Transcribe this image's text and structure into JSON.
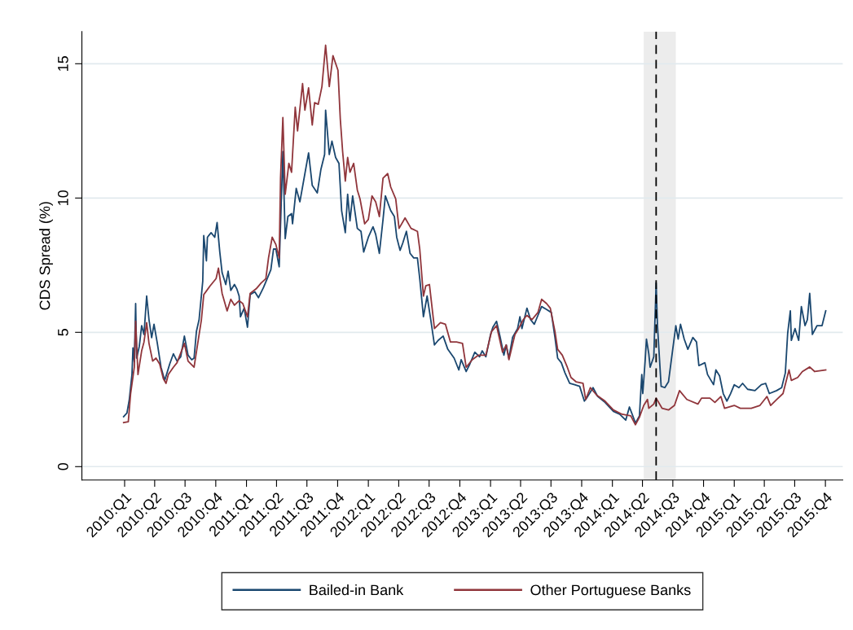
{
  "chart_data": {
    "type": "line",
    "ylabel": "CDS Spread (%)",
    "xlim": [
      "2009-08-26",
      "2015-11-22"
    ],
    "ylim": [
      -0.5,
      16.2
    ],
    "yticks": [
      0,
      5,
      10,
      15
    ],
    "xticks": [
      {
        "value": "2010-01-01",
        "label": "2010:Q1"
      },
      {
        "value": "2010-04-01",
        "label": "2010:Q2"
      },
      {
        "value": "2010-07-01",
        "label": "2010:Q3"
      },
      {
        "value": "2010-10-01",
        "label": "2010:Q4"
      },
      {
        "value": "2011-01-01",
        "label": "2011:Q1"
      },
      {
        "value": "2011-04-01",
        "label": "2011:Q2"
      },
      {
        "value": "2011-07-01",
        "label": "2011:Q3"
      },
      {
        "value": "2011-10-01",
        "label": "2011:Q4"
      },
      {
        "value": "2012-01-01",
        "label": "2012:Q1"
      },
      {
        "value": "2012-04-01",
        "label": "2012:Q2"
      },
      {
        "value": "2012-07-01",
        "label": "2012:Q3"
      },
      {
        "value": "2012-10-01",
        "label": "2012:Q4"
      },
      {
        "value": "2013-01-01",
        "label": "2013:Q1"
      },
      {
        "value": "2013-04-01",
        "label": "2013:Q2"
      },
      {
        "value": "2013-07-01",
        "label": "2013:Q3"
      },
      {
        "value": "2013-10-01",
        "label": "2013:Q4"
      },
      {
        "value": "2014-01-01",
        "label": "2014:Q1"
      },
      {
        "value": "2014-04-01",
        "label": "2014:Q2"
      },
      {
        "value": "2014-07-01",
        "label": "2014:Q3"
      },
      {
        "value": "2014-10-01",
        "label": "2014:Q4"
      },
      {
        "value": "2015-01-01",
        "label": "2015:Q1"
      },
      {
        "value": "2015-04-01",
        "label": "2015:Q2"
      },
      {
        "value": "2015-07-01",
        "label": "2015:Q3"
      },
      {
        "value": "2015-10-01",
        "label": "2015:Q4"
      }
    ],
    "grid": "y",
    "legend": "bottom",
    "line_style": "solid",
    "ref_lines": [
      {
        "axis": "x",
        "value": "2014-05-12",
        "color": "#000000",
        "line_style": "dashed"
      }
    ],
    "bands": [
      {
        "axis": "x",
        "from": "2014-04-05",
        "to": "2014-07-10",
        "color": "#ececec"
      }
    ],
    "series": [
      {
        "name": "Bailed-in Bank",
        "color": "#1a476f",
        "x": [
          "2009-12-29",
          "2010-01-08",
          "2010-01-15",
          "2010-01-23",
          "2010-01-26",
          "2010-01-30",
          "2010-02-03",
          "2010-02-06",
          "2010-02-14",
          "2010-02-21",
          "2010-02-28",
          "2010-03-08",
          "2010-03-15",
          "2010-03-23",
          "2010-03-30",
          "2010-04-09",
          "2010-04-20",
          "2010-05-01",
          "2010-05-08",
          "2010-05-16",
          "2010-05-27",
          "2010-06-07",
          "2010-06-18",
          "2010-06-29",
          "2010-07-10",
          "2010-07-21",
          "2010-07-28",
          "2010-08-04",
          "2010-08-12",
          "2010-08-23",
          "2010-08-26",
          "2010-09-03",
          "2010-09-06",
          "2010-09-17",
          "2010-09-28",
          "2010-10-05",
          "2010-10-13",
          "2010-10-20",
          "2010-10-31",
          "2010-11-07",
          "2010-11-15",
          "2010-11-26",
          "2010-12-03",
          "2010-12-10",
          "2010-12-14",
          "2010-12-25",
          "2011-01-04",
          "2011-01-12",
          "2011-01-26",
          "2011-02-06",
          "2011-02-21",
          "2011-03-04",
          "2011-03-15",
          "2011-03-23",
          "2011-03-30",
          "2011-04-09",
          "2011-04-20",
          "2011-04-27",
          "2011-05-05",
          "2011-05-16",
          "2011-05-19",
          "2011-05-30",
          "2011-06-10",
          "2011-06-25",
          "2011-07-06",
          "2011-07-17",
          "2011-08-01",
          "2011-08-12",
          "2011-08-23",
          "2011-08-26",
          "2011-09-06",
          "2011-09-14",
          "2011-09-25",
          "2011-10-05",
          "2011-10-13",
          "2011-10-24",
          "2011-10-31",
          "2011-11-07",
          "2011-11-15",
          "2011-11-29",
          "2011-12-10",
          "2011-12-18",
          "2012-01-01",
          "2012-01-15",
          "2012-01-23",
          "2012-02-03",
          "2012-02-14",
          "2012-02-21",
          "2012-03-08",
          "2012-03-19",
          "2012-03-26",
          "2012-04-05",
          "2012-04-13",
          "2012-04-24",
          "2012-05-05",
          "2012-05-16",
          "2012-05-27",
          "2012-06-03",
          "2012-06-14",
          "2012-06-25",
          "2012-07-06",
          "2012-07-17",
          "2012-07-28",
          "2012-08-12",
          "2012-08-26",
          "2012-09-14",
          "2012-09-28",
          "2012-10-05",
          "2012-10-20",
          "2012-10-31",
          "2012-11-15",
          "2012-11-29",
          "2012-12-07",
          "2012-12-18",
          "2013-01-01",
          "2013-01-08",
          "2013-01-19",
          "2013-01-30",
          "2013-02-10",
          "2013-02-17",
          "2013-02-25",
          "2013-03-08",
          "2013-03-23",
          "2013-03-30",
          "2013-04-05",
          "2013-04-20",
          "2013-05-01",
          "2013-05-12",
          "2013-05-23",
          "2013-06-03",
          "2013-06-18",
          "2013-07-02",
          "2013-07-13",
          "2013-07-21",
          "2013-08-01",
          "2013-08-12",
          "2013-08-26",
          "2013-09-10",
          "2013-09-25",
          "2013-10-09",
          "2013-10-16",
          "2013-11-04",
          "2013-11-18",
          "2013-12-10",
          "2014-01-04",
          "2014-01-23",
          "2014-02-10",
          "2014-02-21",
          "2014-03-08",
          "2014-03-11",
          "2014-03-23",
          "2014-03-30",
          "2014-04-02",
          "2014-04-09",
          "2014-04-13",
          "2014-04-20",
          "2014-04-24",
          "2014-05-05",
          "2014-05-12",
          "2014-05-16",
          "2014-05-27",
          "2014-06-07",
          "2014-06-18",
          "2014-06-25",
          "2014-07-10",
          "2014-07-17",
          "2014-07-24",
          "2014-08-04",
          "2014-08-15",
          "2014-08-30",
          "2014-09-10",
          "2014-09-17",
          "2014-10-05",
          "2014-10-13",
          "2014-10-31",
          "2014-11-07",
          "2014-11-18",
          "2014-11-29",
          "2014-12-10",
          "2014-12-21",
          "2015-01-01",
          "2015-01-15",
          "2015-01-26",
          "2015-02-10",
          "2015-03-04",
          "2015-03-23",
          "2015-04-05",
          "2015-04-16",
          "2015-05-08",
          "2015-05-23",
          "2015-06-03",
          "2015-06-10",
          "2015-06-18",
          "2015-06-21",
          "2015-07-02",
          "2015-07-13",
          "2015-07-21",
          "2015-08-01",
          "2015-08-08",
          "2015-08-15",
          "2015-08-23",
          "2015-09-06",
          "2015-09-21",
          "2015-10-02"
        ],
        "values": [
          1.86,
          2.0,
          2.5,
          3.43,
          4.42,
          3.9,
          6.07,
          4.04,
          4.48,
          5.25,
          4.92,
          6.35,
          5.47,
          4.8,
          5.3,
          4.59,
          3.7,
          3.21,
          3.49,
          3.82,
          4.2,
          3.93,
          4.09,
          4.86,
          4.15,
          3.98,
          4.04,
          5.03,
          5.47,
          6.9,
          8.6,
          7.66,
          8.54,
          8.71,
          8.54,
          9.09,
          8.0,
          7.22,
          6.78,
          7.28,
          6.56,
          6.78,
          6.62,
          6.35,
          5.58,
          5.9,
          5.19,
          6.4,
          6.51,
          6.29,
          6.67,
          7.0,
          7.33,
          8.1,
          8.1,
          7.44,
          11.73,
          8.49,
          9.31,
          9.42,
          9.04,
          10.36,
          9.86,
          10.91,
          11.68,
          10.47,
          10.19,
          11.07,
          11.62,
          13.27,
          11.62,
          12.12,
          11.51,
          11.29,
          9.53,
          8.71,
          10.14,
          9.15,
          10.08,
          8.87,
          8.76,
          7.99,
          8.54,
          8.93,
          8.65,
          7.94,
          9.2,
          10.08,
          9.53,
          9.31,
          8.54,
          8.05,
          8.32,
          8.76,
          7.94,
          7.77,
          7.77,
          7.0,
          5.58,
          6.35,
          5.47,
          4.53,
          4.7,
          4.86,
          4.37,
          4.04,
          3.6,
          3.98,
          3.54,
          3.82,
          4.26,
          4.09,
          4.31,
          4.09,
          4.92,
          5.19,
          5.41,
          4.81,
          4.15,
          4.53,
          4.04,
          4.81,
          5.14,
          5.58,
          5.14,
          5.9,
          5.47,
          5.3,
          5.63,
          5.96,
          5.85,
          5.74,
          4.81,
          4.04,
          3.87,
          3.49,
          3.1,
          3.05,
          2.99,
          2.44,
          2.55,
          2.94,
          2.61,
          2.39,
          2.06,
          1.95,
          1.73,
          2.22,
          1.73,
          1.62,
          1.89,
          3.43,
          2.72,
          3.93,
          4.75,
          4.2,
          3.7,
          4.09,
          6.84,
          5.25,
          2.99,
          2.94,
          3.16,
          3.82,
          5.25,
          4.75,
          5.3,
          4.75,
          4.37,
          4.81,
          4.64,
          3.76,
          3.87,
          3.43,
          3.05,
          3.6,
          3.38,
          2.72,
          2.44,
          2.72,
          3.05,
          2.94,
          3.1,
          2.88,
          2.83,
          3.05,
          3.1,
          2.72,
          2.83,
          2.94,
          3.49,
          4.97,
          5.8,
          4.7,
          5.14,
          4.7,
          5.96,
          5.25,
          5.47,
          6.45,
          4.92,
          5.25,
          5.25,
          5.8
        ]
      },
      {
        "name": "Other Portuguese Banks",
        "color": "#90353b",
        "x": [
          "2009-12-29",
          "2010-01-12",
          "2010-01-19",
          "2010-01-30",
          "2010-02-03",
          "2010-02-10",
          "2010-02-21",
          "2010-02-28",
          "2010-03-08",
          "2010-03-15",
          "2010-03-26",
          "2010-04-05",
          "2010-04-16",
          "2010-04-27",
          "2010-05-05",
          "2010-05-12",
          "2010-05-27",
          "2010-06-07",
          "2010-06-29",
          "2010-07-10",
          "2010-07-28",
          "2010-08-08",
          "2010-08-19",
          "2010-08-26",
          "2010-09-14",
          "2010-10-02",
          "2010-10-09",
          "2010-10-20",
          "2010-11-04",
          "2010-11-15",
          "2010-11-26",
          "2010-12-10",
          "2010-12-21",
          "2011-01-04",
          "2011-01-12",
          "2011-01-30",
          "2011-02-14",
          "2011-02-28",
          "2011-03-08",
          "2011-03-19",
          "2011-03-30",
          "2011-04-09",
          "2011-04-13",
          "2011-04-20",
          "2011-04-27",
          "2011-05-08",
          "2011-05-16",
          "2011-05-27",
          "2011-06-03",
          "2011-06-18",
          "2011-06-25",
          "2011-07-06",
          "2011-07-17",
          "2011-07-24",
          "2011-08-04",
          "2011-08-15",
          "2011-08-26",
          "2011-09-06",
          "2011-09-17",
          "2011-10-02",
          "2011-10-09",
          "2011-10-16",
          "2011-10-24",
          "2011-10-31",
          "2011-11-07",
          "2011-11-18",
          "2011-11-29",
          "2011-12-07",
          "2011-12-21",
          "2012-01-01",
          "2012-01-12",
          "2012-01-23",
          "2012-02-03",
          "2012-02-14",
          "2012-02-28",
          "2012-03-08",
          "2012-03-23",
          "2012-04-02",
          "2012-04-20",
          "2012-05-08",
          "2012-05-27",
          "2012-06-03",
          "2012-06-14",
          "2012-06-21",
          "2012-07-02",
          "2012-07-17",
          "2012-08-04",
          "2012-08-19",
          "2012-09-03",
          "2012-09-21",
          "2012-10-09",
          "2012-10-20",
          "2012-11-07",
          "2012-11-26",
          "2012-12-18",
          "2013-01-04",
          "2013-01-19",
          "2013-02-06",
          "2013-02-17",
          "2013-02-25",
          "2013-03-15",
          "2013-03-26",
          "2013-04-09",
          "2013-04-20",
          "2013-05-05",
          "2013-05-23",
          "2013-06-03",
          "2013-06-18",
          "2013-06-29",
          "2013-07-13",
          "2013-07-21",
          "2013-08-04",
          "2013-08-19",
          "2013-08-30",
          "2013-09-14",
          "2013-10-05",
          "2013-10-13",
          "2013-10-27",
          "2013-11-15",
          "2013-12-10",
          "2014-01-04",
          "2014-01-30",
          "2014-02-25",
          "2014-03-11",
          "2014-03-23",
          "2014-04-05",
          "2014-04-16",
          "2014-04-20",
          "2014-05-05",
          "2014-05-12",
          "2014-05-30",
          "2014-06-18",
          "2014-07-06",
          "2014-07-21",
          "2014-08-12",
          "2014-09-14",
          "2014-09-25",
          "2014-10-20",
          "2014-11-04",
          "2014-11-22",
          "2014-12-03",
          "2015-01-01",
          "2015-01-19",
          "2015-02-21",
          "2015-03-19",
          "2015-04-02",
          "2015-04-09",
          "2015-04-20",
          "2015-05-08",
          "2015-05-27",
          "2015-06-14",
          "2015-06-21",
          "2015-07-10",
          "2015-07-24",
          "2015-08-15",
          "2015-08-30",
          "2015-10-02"
        ],
        "values": [
          1.64,
          1.67,
          2.72,
          3.7,
          5.41,
          3.43,
          4.31,
          4.64,
          5.36,
          4.59,
          3.93,
          4.04,
          3.82,
          3.27,
          3.1,
          3.43,
          3.7,
          3.87,
          4.59,
          3.93,
          3.7,
          4.59,
          5.47,
          6.4,
          6.73,
          7.0,
          7.39,
          6.45,
          5.8,
          6.23,
          6.01,
          6.18,
          6.07,
          5.58,
          6.45,
          6.62,
          6.84,
          7.0,
          7.77,
          8.54,
          8.27,
          7.77,
          10.74,
          13.0,
          10.14,
          11.29,
          10.96,
          13.38,
          12.5,
          14.26,
          13.27,
          14.1,
          12.72,
          13.55,
          13.49,
          14.15,
          15.69,
          14.15,
          15.3,
          14.76,
          12.94,
          11.73,
          10.63,
          11.51,
          10.96,
          11.29,
          10.3,
          9.97,
          9.04,
          9.2,
          10.08,
          9.86,
          9.31,
          10.74,
          10.91,
          10.41,
          9.97,
          8.87,
          9.26,
          8.87,
          8.76,
          8.1,
          6.35,
          6.73,
          6.78,
          5.14,
          5.36,
          5.3,
          4.64,
          4.64,
          4.59,
          3.7,
          3.98,
          4.15,
          4.15,
          5.03,
          5.25,
          4.26,
          4.53,
          3.98,
          4.92,
          5.14,
          5.47,
          5.63,
          5.47,
          5.74,
          6.23,
          6.07,
          5.9,
          5.03,
          4.37,
          4.15,
          3.7,
          3.32,
          3.16,
          3.1,
          2.5,
          2.94,
          2.66,
          2.44,
          2.11,
          1.95,
          1.89,
          1.56,
          1.84,
          2.28,
          2.5,
          2.17,
          2.33,
          2.55,
          2.17,
          2.11,
          2.28,
          2.83,
          2.5,
          2.33,
          2.55,
          2.55,
          2.39,
          2.61,
          2.17,
          2.28,
          2.17,
          2.17,
          2.28,
          2.5,
          2.61,
          2.28,
          2.5,
          2.72,
          3.6,
          3.21,
          3.32,
          3.54,
          3.71,
          3.54,
          3.6
        ]
      }
    ]
  }
}
